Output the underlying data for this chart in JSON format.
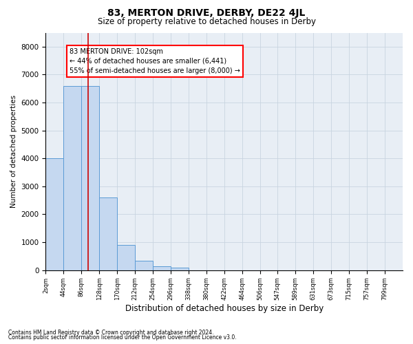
{
  "title": "83, MERTON DRIVE, DERBY, DE22 4JL",
  "subtitle": "Size of property relative to detached houses in Derby",
  "xlabel": "Distribution of detached houses by size in Derby",
  "ylabel": "Number of detached properties",
  "footnote1": "Contains HM Land Registry data © Crown copyright and database right 2024.",
  "footnote2": "Contains public sector information licensed under the Open Government Licence v3.0.",
  "bin_edges": [
    2,
    44,
    86,
    128,
    170,
    212,
    254,
    296,
    338,
    380,
    422,
    464,
    506,
    547,
    589,
    631,
    673,
    715,
    757,
    799,
    841
  ],
  "bar_heights": [
    4000,
    6600,
    6600,
    2600,
    900,
    350,
    150,
    100,
    0,
    0,
    0,
    0,
    0,
    0,
    0,
    0,
    0,
    0,
    0,
    0
  ],
  "bar_color": "#c5d8f0",
  "bar_edge_color": "#5b9bd5",
  "vline_x": 102,
  "vline_color": "#cc0000",
  "ylim": [
    0,
    8500
  ],
  "yticks": [
    0,
    1000,
    2000,
    3000,
    4000,
    5000,
    6000,
    7000,
    8000
  ],
  "annotation_line1": "83 MERTON DRIVE: 102sqm",
  "annotation_line2": "← 44% of detached houses are smaller (6,441)",
  "annotation_line3": "55% of semi-detached houses are larger (8,000) →",
  "grid_color": "#c8d4e0",
  "background_color": "#e8eef5",
  "title_fontsize": 10,
  "subtitle_fontsize": 8.5,
  "ylabel_fontsize": 7.5,
  "xlabel_fontsize": 8.5,
  "ytick_fontsize": 7.5,
  "xtick_fontsize": 6,
  "annot_fontsize": 7,
  "footnote_fontsize": 5.5
}
